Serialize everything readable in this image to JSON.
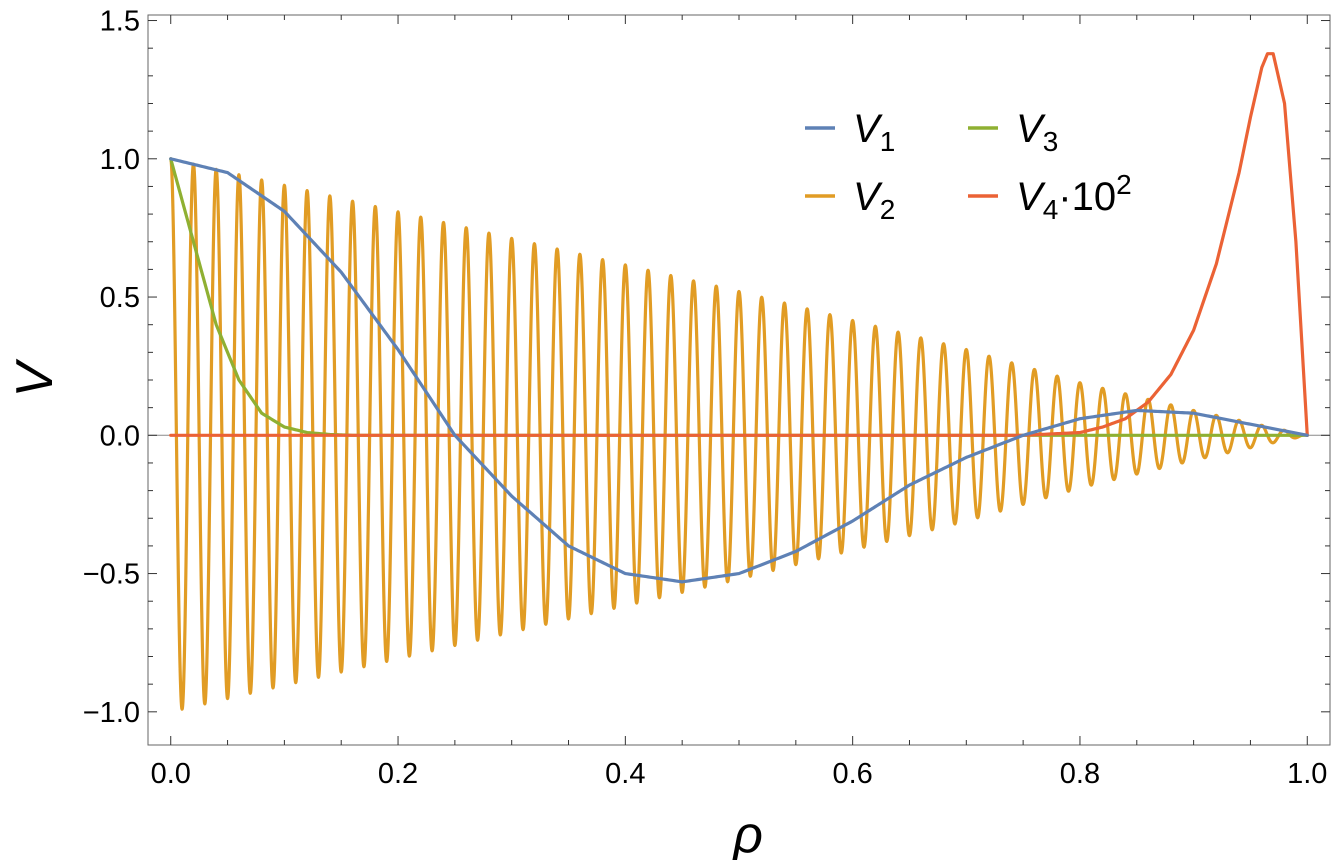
{
  "chart_data": {
    "type": "line",
    "title": "",
    "xlabel": "ρ",
    "ylabel": "V",
    "xlim": [
      -0.02,
      1.02
    ],
    "ylim": [
      -1.12,
      1.52
    ],
    "grid": false,
    "legend_position": "top-right",
    "x_ticks": [
      0.0,
      0.2,
      0.4,
      0.6,
      0.8,
      1.0
    ],
    "x_tick_labels": [
      "0.0",
      "0.2",
      "0.4",
      "0.6",
      "0.8",
      "1.0"
    ],
    "y_ticks": [
      -1.0,
      -0.5,
      0.0,
      0.5,
      1.0,
      1.5
    ],
    "y_tick_labels": [
      "−1.0",
      "−0.5",
      "0.0",
      "0.5",
      "1.0",
      "1.5"
    ],
    "series": [
      {
        "name": "V1",
        "label_base": "V",
        "label_sub": "1",
        "label_suffix": "",
        "label_sup": "",
        "color": "#5e81b5",
        "x": [
          0.0,
          0.05,
          0.1,
          0.15,
          0.2,
          0.25,
          0.3,
          0.35,
          0.4,
          0.45,
          0.5,
          0.55,
          0.6,
          0.65,
          0.7,
          0.75,
          0.8,
          0.85,
          0.9,
          0.95,
          1.0
        ],
        "y": [
          1.0,
          0.95,
          0.81,
          0.59,
          0.31,
          0.0,
          -0.22,
          -0.4,
          -0.5,
          -0.53,
          -0.5,
          -0.42,
          -0.31,
          -0.18,
          -0.08,
          0.0,
          0.06,
          0.09,
          0.08,
          0.04,
          0.0
        ]
      },
      {
        "name": "V2",
        "label_base": "V",
        "label_sub": "2",
        "label_suffix": "",
        "label_sup": "",
        "color": "#e19c24",
        "oscillation_cycles": 50,
        "envelope_x": [
          0.0,
          0.5,
          0.7,
          0.8,
          0.9,
          1.0
        ],
        "envelope_y": [
          1.0,
          0.52,
          0.31,
          0.19,
          0.09,
          0.0
        ]
      },
      {
        "name": "V3",
        "label_base": "V",
        "label_sub": "3",
        "label_suffix": "",
        "label_sup": "",
        "color": "#8fb032",
        "x": [
          0.0,
          0.02,
          0.04,
          0.06,
          0.08,
          0.1,
          0.12,
          0.14,
          0.16,
          0.2,
          0.4,
          0.6,
          0.8,
          1.0
        ],
        "y": [
          1.0,
          0.7,
          0.4,
          0.2,
          0.08,
          0.03,
          0.01,
          0.003,
          0.0,
          0.0,
          0.0,
          0.0,
          0.0,
          0.0
        ]
      },
      {
        "name": "V4·10^2",
        "label_base": "V",
        "label_sub": "4",
        "label_suffix": "·10",
        "label_sup": "2",
        "color": "#eb6235",
        "x": [
          0.0,
          0.7,
          0.75,
          0.8,
          0.82,
          0.84,
          0.86,
          0.88,
          0.9,
          0.92,
          0.94,
          0.95,
          0.96,
          0.965,
          0.97,
          0.98,
          0.99,
          1.0
        ],
        "y": [
          0.0,
          0.0,
          0.0,
          0.01,
          0.03,
          0.06,
          0.12,
          0.22,
          0.38,
          0.62,
          0.95,
          1.15,
          1.33,
          1.38,
          1.38,
          1.2,
          0.7,
          0.0
        ]
      }
    ]
  }
}
